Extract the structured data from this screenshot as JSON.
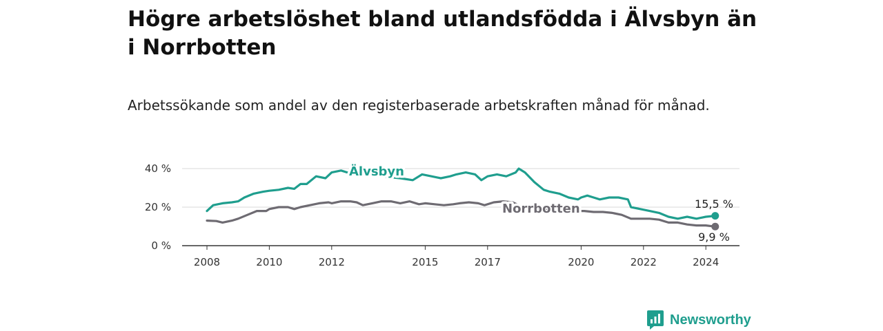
{
  "title": "Högre arbetslöshet bland utlandsfödda i Älvsbyn än i Norrbotten",
  "subtitle": "Arbetssökande som andel av den registerbaserade arbetskraften månad för månad.",
  "brand": {
    "name": "Newsworthy",
    "icon": "newsworthy-logo-icon",
    "color": "#1f9e8e"
  },
  "chart_data": {
    "type": "line",
    "ylim": [
      0,
      40
    ],
    "xlim": [
      2008,
      2024.5
    ],
    "yticks": [
      0,
      20,
      40
    ],
    "ytick_labels": [
      "0 %",
      "20 %",
      "40 %"
    ],
    "xticks": [
      2008,
      2010,
      2012,
      2015,
      2017,
      2020,
      2022,
      2024
    ],
    "xtick_labels": [
      "2008",
      "2010",
      "2012",
      "2015",
      "2017",
      "2020",
      "2022",
      "2024"
    ],
    "grid": "horizontal",
    "series": [
      {
        "name": "Älvsbyn",
        "label": "Älvsbyn",
        "color": "#1f9e8e",
        "end_label": "15,5 %",
        "points": [
          [
            2008.0,
            18
          ],
          [
            2008.2,
            21
          ],
          [
            2008.5,
            22
          ],
          [
            2008.8,
            22.5
          ],
          [
            2009.0,
            23
          ],
          [
            2009.2,
            25
          ],
          [
            2009.5,
            27
          ],
          [
            2009.8,
            28
          ],
          [
            2010.0,
            28.5
          ],
          [
            2010.3,
            29
          ],
          [
            2010.6,
            30
          ],
          [
            2010.8,
            29.5
          ],
          [
            2011.0,
            32
          ],
          [
            2011.2,
            32
          ],
          [
            2011.5,
            36
          ],
          [
            2011.8,
            35
          ],
          [
            2012.0,
            38
          ],
          [
            2012.3,
            39
          ],
          [
            2012.5,
            38
          ],
          [
            2012.8,
            37
          ],
          [
            2013.0,
            39
          ],
          [
            2013.3,
            37
          ],
          [
            2013.6,
            36
          ],
          [
            2013.9,
            35.5
          ],
          [
            2014.2,
            35
          ],
          [
            2014.6,
            34
          ],
          [
            2014.9,
            37
          ],
          [
            2015.2,
            36
          ],
          [
            2015.5,
            35
          ],
          [
            2015.8,
            36
          ],
          [
            2016.0,
            37
          ],
          [
            2016.3,
            38
          ],
          [
            2016.6,
            37
          ],
          [
            2016.8,
            34
          ],
          [
            2017.0,
            36
          ],
          [
            2017.3,
            37
          ],
          [
            2017.6,
            36
          ],
          [
            2017.9,
            38
          ],
          [
            2018.0,
            40
          ],
          [
            2018.2,
            38
          ],
          [
            2018.5,
            33
          ],
          [
            2018.8,
            29
          ],
          [
            2019.0,
            28
          ],
          [
            2019.3,
            27
          ],
          [
            2019.6,
            25
          ],
          [
            2019.9,
            24
          ],
          [
            2020.0,
            25
          ],
          [
            2020.2,
            26
          ],
          [
            2020.4,
            25
          ],
          [
            2020.6,
            24
          ],
          [
            2020.9,
            25
          ],
          [
            2021.2,
            25
          ],
          [
            2021.5,
            24
          ],
          [
            2021.6,
            20
          ],
          [
            2021.9,
            19
          ],
          [
            2022.2,
            18
          ],
          [
            2022.5,
            17
          ],
          [
            2022.8,
            15
          ],
          [
            2023.1,
            14
          ],
          [
            2023.4,
            15
          ],
          [
            2023.7,
            14
          ],
          [
            2024.0,
            15
          ],
          [
            2024.3,
            15.5
          ]
        ]
      },
      {
        "name": "Norrbotten",
        "label": "Norrbotten",
        "color": "#6e6b72",
        "end_label": "9,9 %",
        "points": [
          [
            2008.0,
            13
          ],
          [
            2008.3,
            12.8
          ],
          [
            2008.5,
            12
          ],
          [
            2008.8,
            13
          ],
          [
            2009.0,
            14
          ],
          [
            2009.3,
            16
          ],
          [
            2009.6,
            18
          ],
          [
            2009.9,
            18
          ],
          [
            2010.0,
            19
          ],
          [
            2010.3,
            20
          ],
          [
            2010.6,
            20
          ],
          [
            2010.8,
            19
          ],
          [
            2011.0,
            20
          ],
          [
            2011.3,
            21
          ],
          [
            2011.6,
            22
          ],
          [
            2011.9,
            22.5
          ],
          [
            2012.0,
            22
          ],
          [
            2012.3,
            23
          ],
          [
            2012.6,
            23
          ],
          [
            2012.8,
            22.5
          ],
          [
            2013.0,
            21
          ],
          [
            2013.3,
            22
          ],
          [
            2013.6,
            23
          ],
          [
            2013.9,
            23
          ],
          [
            2014.2,
            22
          ],
          [
            2014.5,
            23
          ],
          [
            2014.8,
            21.5
          ],
          [
            2015.0,
            22
          ],
          [
            2015.3,
            21.5
          ],
          [
            2015.6,
            21
          ],
          [
            2015.9,
            21.5
          ],
          [
            2016.1,
            22
          ],
          [
            2016.4,
            22.5
          ],
          [
            2016.7,
            22
          ],
          [
            2016.9,
            21
          ],
          [
            2017.2,
            22.5
          ],
          [
            2017.5,
            23
          ],
          [
            2017.8,
            22.5
          ],
          [
            2018.0,
            21
          ],
          [
            2018.3,
            20
          ],
          [
            2018.6,
            19.5
          ],
          [
            2018.9,
            19
          ],
          [
            2019.2,
            18.5
          ],
          [
            2019.5,
            18
          ],
          [
            2019.8,
            18
          ],
          [
            2020.1,
            18
          ],
          [
            2020.4,
            17.5
          ],
          [
            2020.7,
            17.5
          ],
          [
            2021.0,
            17
          ],
          [
            2021.3,
            16
          ],
          [
            2021.6,
            14
          ],
          [
            2021.9,
            14
          ],
          [
            2022.2,
            14
          ],
          [
            2022.5,
            13.5
          ],
          [
            2022.8,
            12
          ],
          [
            2023.1,
            12
          ],
          [
            2023.4,
            11
          ],
          [
            2023.7,
            10.5
          ],
          [
            2024.0,
            10.5
          ],
          [
            2024.3,
            9.9
          ]
        ]
      }
    ]
  }
}
